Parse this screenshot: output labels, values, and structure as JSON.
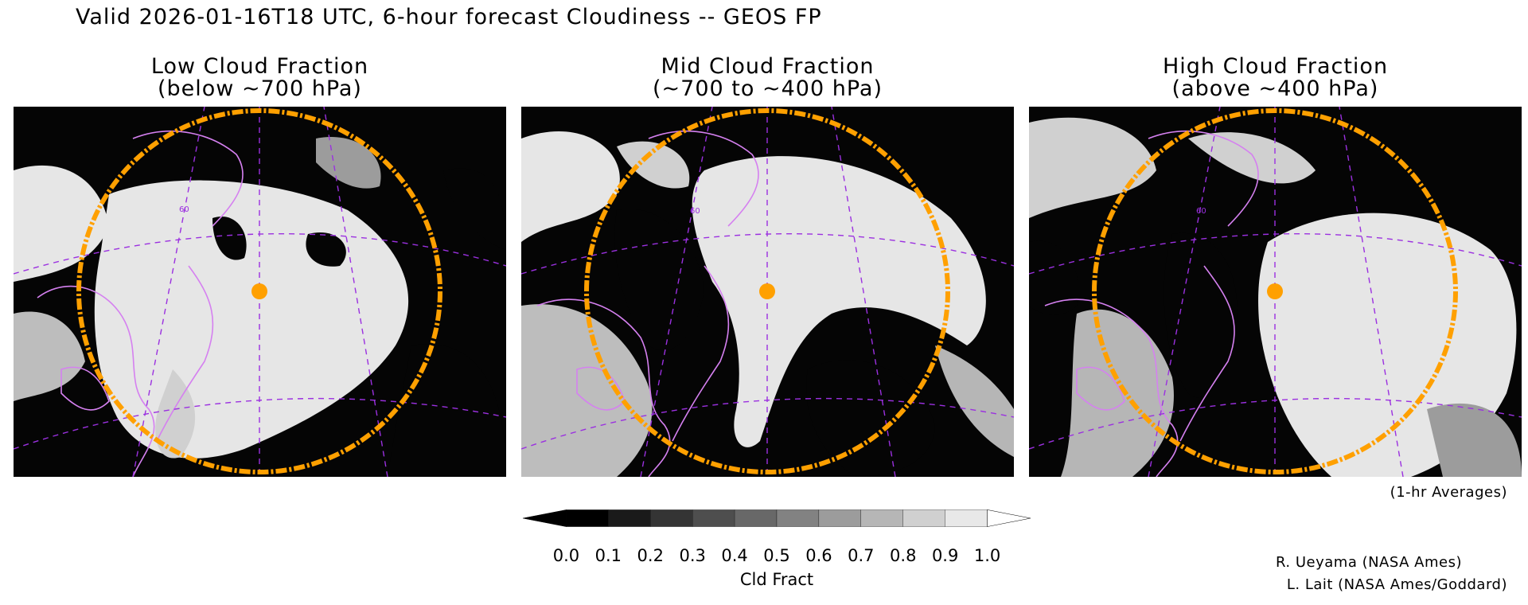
{
  "header": {
    "title": "Valid 2026-01-16T18 UTC, 6-hour forecast Cloudiness -- GEOS FP"
  },
  "panels": [
    {
      "title_line1": "Low Cloud Fraction",
      "title_line2": "(below ~700 hPa)",
      "lat_label": "60"
    },
    {
      "title_line1": "Mid Cloud Fraction",
      "title_line2": "(~700 to ~400 hPa)",
      "lat_label": "60"
    },
    {
      "title_line1": "High Cloud Fraction",
      "title_line2": "(above ~400 hPa)",
      "lat_label": "60"
    }
  ],
  "notes": {
    "averages": "(1-hr Averages)",
    "credit_1": "R. Ueyama (NASA Ames)",
    "credit_2": "L. Lait (NASA Ames/Goddard)"
  },
  "colorbar": {
    "title": "Cld Fract",
    "labels": [
      "0.0",
      "0.1",
      "0.2",
      "0.3",
      "0.4",
      "0.5",
      "0.6",
      "0.7",
      "0.8",
      "0.9",
      "1.0"
    ],
    "colors": [
      "#000000",
      "#1a1a1a",
      "#343434",
      "#4e4e4e",
      "#686868",
      "#828282",
      "#9c9c9c",
      "#b6b6b6",
      "#d0d0d0",
      "#e8e8e8"
    ],
    "under_color": "#000000",
    "over_color": "#ffffff"
  },
  "styles": {
    "coastline_color": "#d580f0",
    "grid_color": "#9b30e0",
    "range_ring_color": "#ffa000",
    "site_marker_color": "#ffa000",
    "cloud_color": "#e6e6e6"
  }
}
